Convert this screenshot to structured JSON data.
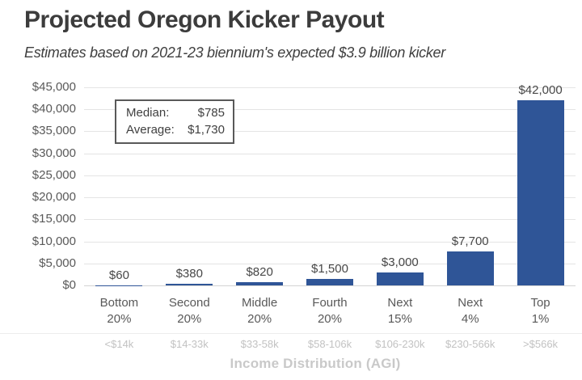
{
  "header": {
    "title": "Projected Oregon Kicker Payout",
    "subtitle": "Estimates based on 2021-23 biennium's expected $3.9 billion kicker"
  },
  "annotation_box": {
    "median_label": "Median:",
    "median_value": "$785",
    "average_label": "Average:",
    "average_value": "$1,730"
  },
  "chart_data": {
    "type": "bar",
    "title": "Projected Oregon Kicker Payout",
    "subtitle": "Estimates based on 2021-23 biennium's expected $3.9 billion kicker",
    "categories": [
      "Bottom 20%",
      "Second 20%",
      "Middle 20%",
      "Fourth 20%",
      "Next 15%",
      "Next 4%",
      "Top 1%"
    ],
    "category_sublabels": [
      "<$14k",
      "$14-33k",
      "$33-58k",
      "$58-106k",
      "$106-230k",
      "$230-566k",
      ">$566k"
    ],
    "values": [
      60,
      380,
      820,
      1500,
      3000,
      7700,
      42000
    ],
    "data_labels": [
      "$60",
      "$380",
      "$820",
      "$1,500",
      "$3,000",
      "$7,700",
      "$42,000"
    ],
    "y_ticks": [
      0,
      5000,
      10000,
      15000,
      20000,
      25000,
      30000,
      35000,
      40000,
      45000
    ],
    "y_tick_labels": [
      "$0",
      "$5,000",
      "$10,000",
      "$15,000",
      "$20,000",
      "$25,000",
      "$30,000",
      "$35,000",
      "$40,000",
      "$45,000"
    ],
    "ylim": [
      0,
      45000
    ],
    "xlabel": "Income Distribution (AGI)",
    "ylabel": "",
    "grid": true,
    "legend": false,
    "bar_color": "#2F5597",
    "grid_color": "#e4e4e4",
    "label_color": "#474747",
    "muted_color": "#c2c2c2"
  }
}
